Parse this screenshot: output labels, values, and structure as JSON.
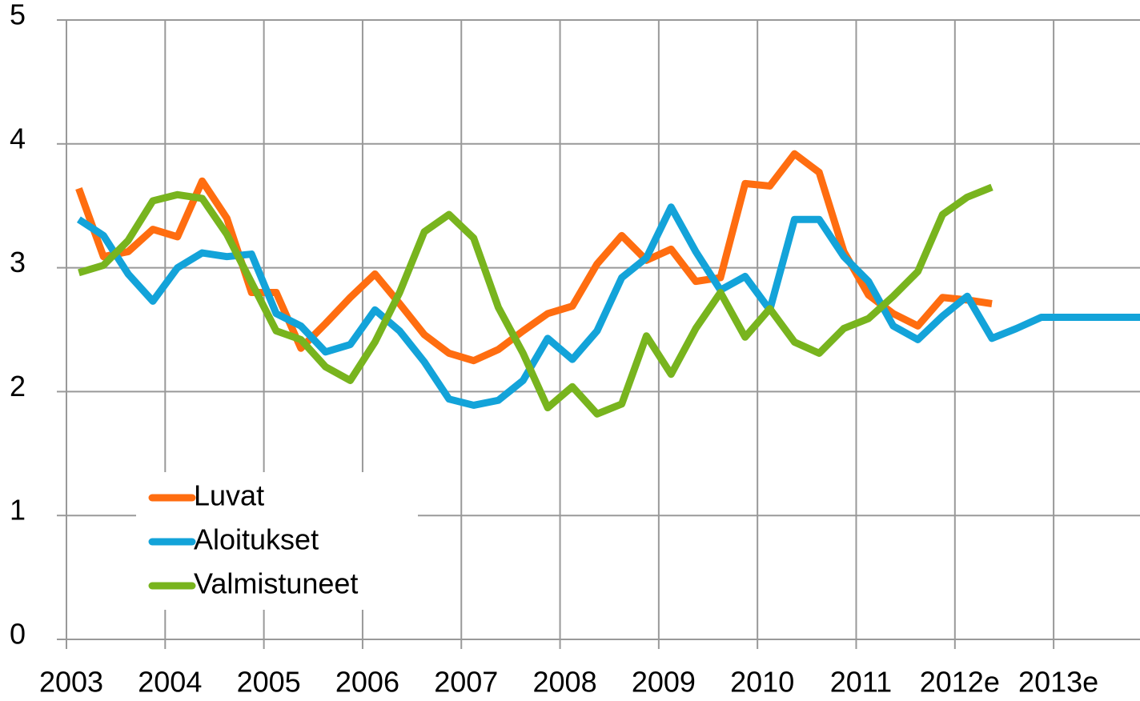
{
  "chart_data": {
    "type": "line",
    "x": [
      2003.125,
      2003.375,
      2003.625,
      2003.875,
      2004.125,
      2004.375,
      2004.625,
      2004.875,
      2005.125,
      2005.375,
      2005.625,
      2005.875,
      2006.125,
      2006.375,
      2006.625,
      2006.875,
      2007.125,
      2007.375,
      2007.625,
      2007.875,
      2008.125,
      2008.375,
      2008.625,
      2008.875,
      2009.125,
      2009.375,
      2009.625,
      2009.875,
      2010.125,
      2010.375,
      2010.625,
      2010.875,
      2011.125,
      2011.375,
      2011.625,
      2011.875,
      2012.125,
      2012.375,
      2012.625,
      2012.875,
      2013.125,
      2013.375,
      2013.625,
      2013.875
    ],
    "series": [
      {
        "name": "Luvat",
        "color": "#ff6d10",
        "values": [
          3.64,
          3.09,
          3.13,
          3.31,
          3.25,
          3.7,
          3.4,
          2.8,
          2.8,
          2.35,
          2.55,
          2.76,
          2.95,
          2.71,
          2.46,
          2.31,
          2.25,
          2.34,
          2.49,
          2.63,
          2.69,
          3.03,
          3.26,
          3.06,
          3.15,
          2.89,
          2.92,
          3.68,
          3.66,
          3.92,
          3.77,
          3.13,
          2.78,
          2.63,
          2.53,
          2.76,
          2.74,
          2.71,
          null,
          null,
          null,
          null,
          null,
          null
        ]
      },
      {
        "name": "Aloitukset",
        "color": "#13a3d9",
        "values": [
          3.39,
          3.26,
          2.95,
          2.73,
          3.0,
          3.12,
          3.09,
          3.11,
          2.63,
          2.53,
          2.32,
          2.38,
          2.66,
          2.49,
          2.24,
          1.94,
          1.89,
          1.93,
          2.09,
          2.43,
          2.26,
          2.49,
          2.92,
          3.08,
          3.49,
          3.13,
          2.82,
          2.93,
          2.66,
          3.39,
          3.39,
          3.09,
          2.89,
          2.53,
          2.42,
          2.61,
          2.77,
          2.43,
          2.51,
          2.6,
          2.6,
          2.6,
          2.6,
          2.6
        ]
      },
      {
        "name": "Valmistuneet",
        "color": "#78b41e",
        "values": [
          2.96,
          3.02,
          3.22,
          3.54,
          3.59,
          3.56,
          3.27,
          2.88,
          2.49,
          2.42,
          2.2,
          2.09,
          2.4,
          2.8,
          3.29,
          3.43,
          3.24,
          2.68,
          2.31,
          1.87,
          2.04,
          1.82,
          1.9,
          2.45,
          2.14,
          2.51,
          2.8,
          2.44,
          2.67,
          2.4,
          2.31,
          2.51,
          2.59,
          2.77,
          2.97,
          3.43,
          3.57,
          3.65,
          null,
          null,
          null,
          null,
          null,
          null
        ]
      }
    ],
    "xlim": [
      2003,
      2013.875
    ],
    "xticks": [
      2003,
      2004,
      2005,
      2006,
      2007,
      2008,
      2009,
      2010,
      2011,
      {
        "value": 2012,
        "label": "2012e"
      },
      {
        "value": 2013,
        "label": "2013e"
      }
    ],
    "ylim": [
      0,
      5
    ],
    "yticks": [
      0,
      1,
      2,
      3,
      4,
      5
    ],
    "grid": true,
    "legend": "lower left"
  }
}
